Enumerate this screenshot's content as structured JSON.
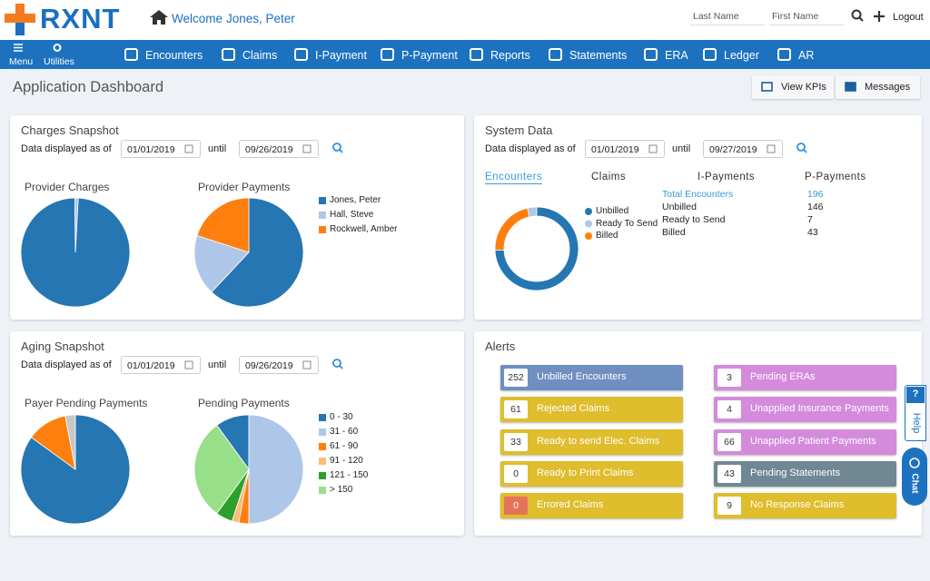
{
  "header": {
    "logo": "RXNT",
    "welcome": "Welcome",
    "user": "Jones, Peter",
    "last_name": "Last Name",
    "first_name": "First Name",
    "logout": "Logout"
  },
  "nav": {
    "menu": "Menu",
    "utilities": "Utilities",
    "items": [
      "Encounters",
      "Claims",
      "I-Payment",
      "P-Payment",
      "Reports",
      "Statements",
      "ERA",
      "Ledger",
      "AR"
    ]
  },
  "page": {
    "title": "Application Dashboard",
    "buttons": [
      "View KPIs",
      "Messages"
    ]
  },
  "charges_snapshot": {
    "title": "Charges Snapshot",
    "as_of": "Data displayed as of",
    "from": "01/01/2019",
    "until": "until",
    "to": "09/26/2019"
  },
  "system_data": {
    "title": "System Data",
    "as_of": "Data displayed as of",
    "from": "01/01/2019",
    "until": "until",
    "to": "09/27/2019",
    "tabs": [
      "Encounters",
      "Claims",
      "I-Payments",
      "P-Payments"
    ],
    "total_label": "Total Encounters",
    "total": 196,
    "rows": [
      "Unbilled",
      "Ready to Send",
      "Billed"
    ]
  },
  "aging_snapshot": {
    "title": "Aging Snapshot",
    "as_of": "Data displayed as of",
    "from": "01/01/2019",
    "until": "until",
    "to": "09/26/2019"
  },
  "alerts": {
    "title": "Alerts",
    "items": [
      {
        "count": 252,
        "label": "Unbilled Encounters",
        "color": "#6f8fc0"
      },
      {
        "count": 61,
        "label": "Rejected Claims",
        "color": "#dfbd2c"
      },
      {
        "count": 33,
        "label": "Ready to send Elec. Claims",
        "color": "#dfbd2c"
      },
      {
        "count": 0,
        "label": "Ready to Print Claims",
        "color": "#dfbd2c"
      },
      {
        "count": 0,
        "label": "Errored Claims",
        "color": "#dfbd2c",
        "count_color": "#e5735a"
      },
      {
        "count": 3,
        "label": "Pending ERAs",
        "color": "#d48bdc"
      },
      {
        "count": 4,
        "label": "Unapplied Insurance Payments",
        "color": "#d48bdc"
      },
      {
        "count": 66,
        "label": "Unapplied Patient Payments",
        "color": "#d48bdc"
      },
      {
        "count": 43,
        "label": "Pending Statements",
        "color": "#6f8893"
      },
      {
        "count": 9,
        "label": "No Response Claims",
        "color": "#dfbd2c"
      }
    ]
  },
  "side": {
    "help_icon": "?",
    "help": "Help",
    "chat": "Chat"
  },
  "chart_data": [
    {
      "type": "pie",
      "title": "Provider Charges",
      "values": [
        99,
        1
      ],
      "colors": [
        "#2576b3",
        "#aec7e8"
      ]
    },
    {
      "type": "pie",
      "title": "Provider Payments",
      "categories": [
        "Jones, Peter",
        "Hall, Steve",
        "Rockwell, Amber"
      ],
      "values": [
        62,
        18,
        20
      ],
      "colors": [
        "#2576b3",
        "#aec7e8",
        "#ff7f0e"
      ]
    },
    {
      "type": "donut",
      "categories": [
        "Unbilled",
        "Ready To Send",
        "Billed"
      ],
      "values": [
        146,
        7,
        43
      ],
      "colors": [
        "#2576b3",
        "#aec7e8",
        "#ff7f0e"
      ]
    },
    {
      "type": "pie",
      "title": "Payer Pending Payments",
      "values": [
        85,
        12,
        3
      ],
      "colors": [
        "#2576b3",
        "#ff7f0e",
        "#c7c7c7"
      ]
    },
    {
      "type": "pie",
      "title": "Pending Payments",
      "categories": [
        "0 - 30",
        "31 - 60",
        "61 - 90",
        "91 - 120",
        "121 - 150",
        "> 150"
      ],
      "values": [
        10,
        50,
        3,
        2,
        5,
        30
      ],
      "colors": [
        "#2576b3",
        "#aec7e8",
        "#ff7f0e",
        "#ffbb78",
        "#2ca02c",
        "#98df8a"
      ]
    }
  ]
}
